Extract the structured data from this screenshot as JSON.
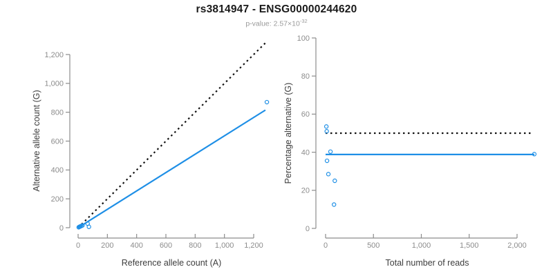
{
  "header": {
    "title": "rs3814947 - ENSG00000244620",
    "subtitle_base": "p-value: 2.57×10",
    "subtitle_exponent": "-32"
  },
  "colors": {
    "accent_blue": "#1E8FE6",
    "dotted_black": "#111111",
    "axis_gray": "#8c8c8c"
  },
  "chart_data": [
    {
      "type": "scatter",
      "panel": "left",
      "xlabel": "Reference allele count (A)",
      "ylabel": "Alternative allele count (G)",
      "xlim": [
        0,
        1300
      ],
      "ylim": [
        0,
        1300
      ],
      "grid": false,
      "legend": "none",
      "xticks": [
        0,
        200,
        400,
        600,
        800,
        1000,
        1200
      ],
      "xtick_labels": [
        "0",
        "200",
        "400",
        "600",
        "800",
        "1,000",
        "1,200"
      ],
      "yticks": [
        0,
        200,
        400,
        600,
        800,
        1000,
        1200
      ],
      "ytick_labels": [
        "0",
        "200",
        "400",
        "600",
        "800",
        "1,000",
        "1,200"
      ],
      "point_color": "#1E8FE6",
      "points": [
        [
          4,
          3
        ],
        [
          9,
          6
        ],
        [
          15,
          9
        ],
        [
          22,
          12
        ],
        [
          30,
          16
        ],
        [
          65,
          28
        ],
        [
          74,
          6
        ],
        [
          1290,
          870
        ]
      ],
      "lines": [
        {
          "name": "identity-dotted-line",
          "style": "dotted",
          "color": "#111111",
          "x": [
            0,
            1290
          ],
          "y": [
            0,
            1290
          ]
        },
        {
          "name": "regression-line",
          "style": "solid",
          "color": "#1E8FE6",
          "x": [
            0,
            1280
          ],
          "y": [
            0,
            815
          ]
        }
      ]
    },
    {
      "type": "scatter",
      "panel": "right",
      "xlabel": "Total number of reads",
      "ylabel": "Percentage alternative (G)",
      "xlim": [
        0,
        2250
      ],
      "ylim": [
        0,
        100
      ],
      "grid": false,
      "legend": "none",
      "xticks": [
        0,
        500,
        1000,
        1500,
        2000
      ],
      "xtick_labels": [
        "0",
        "500",
        "1,000",
        "1,500",
        "2,000"
      ],
      "yticks": [
        0,
        20,
        40,
        60,
        80,
        100
      ],
      "ytick_labels": [
        "0",
        "20",
        "40",
        "60",
        "80",
        "100"
      ],
      "point_color": "#1E8FE6",
      "points": [
        [
          8,
          53.5
        ],
        [
          12,
          51
        ],
        [
          15,
          35.5
        ],
        [
          29,
          28.5
        ],
        [
          51,
          40.3
        ],
        [
          88,
          12.5
        ],
        [
          96,
          25
        ],
        [
          2180,
          39
        ]
      ],
      "lines": [
        {
          "name": "expected-50pct-dotted-line",
          "style": "dotted",
          "color": "#111111",
          "x": [
            0,
            2160
          ],
          "y": [
            50,
            50
          ]
        },
        {
          "name": "fitted-percentage-line",
          "style": "solid",
          "color": "#1E8FE6",
          "x": [
            0,
            2180
          ],
          "y": [
            38.8,
            38.8
          ]
        }
      ]
    }
  ]
}
